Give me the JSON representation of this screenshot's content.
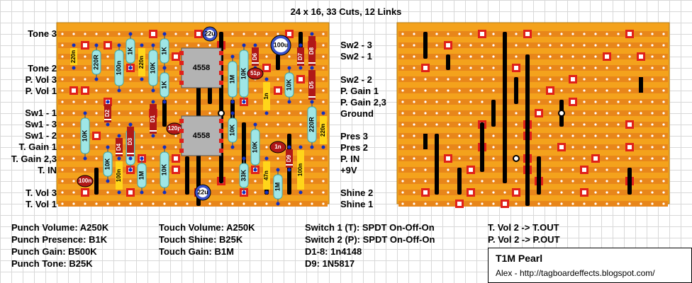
{
  "header": {
    "title": "24 x 16, 33 Cuts, 12 Links"
  },
  "labels_left": [
    "Tone 3",
    "Tone 2",
    "P. Vol 3",
    "P. Vol 1",
    "Sw1 - 1",
    "Sw1 - 3",
    "Sw1 - 2",
    "T. Gain 1",
    "T. Gain 2,3",
    "T. IN",
    "T. Vol 3",
    "T. Vol 1"
  ],
  "labels_right": [
    "Sw2 - 3",
    "Sw2 - 1",
    "Sw2 - 2",
    "P. Gain 1",
    "P. Gain 2,3",
    "Ground",
    "Pres 3",
    "Pres 2",
    "P. IN",
    "+9V",
    "Shine 2",
    "Shine 1"
  ],
  "components": {
    "resistors": [
      "220n",
      "220R",
      "100n",
      "1K",
      "220n",
      "10K",
      "1K",
      "1K",
      "10K",
      "1M",
      "10K",
      "10K",
      "1M",
      "1M",
      "10K",
      "10K",
      "10K",
      "1K",
      "10K",
      "1M",
      "1M",
      "10K",
      "10K",
      "33K",
      "47n",
      "1M",
      "220R",
      "220n"
    ],
    "caps": [
      "22u",
      "100u",
      "22u",
      "51p",
      "120p",
      "1n",
      "100n"
    ],
    "diodes": [
      "D1",
      "D2",
      "D3",
      "D4",
      "D5",
      "D6",
      "D7",
      "D8",
      "D9"
    ],
    "ics": [
      "4558",
      "4558"
    ],
    "film": [
      "1n",
      "100n"
    ]
  },
  "pots": [
    "Punch Volume: A250K",
    "Punch Presence: B1K",
    "Punch Gain: B500K",
    "Punch Tone: B25K"
  ],
  "pots2": [
    "Touch Volume: A250K",
    "Touch Shine: B25K",
    "Touch Gain: B1M"
  ],
  "switches": [
    "Switch 1 (T): SPDT On-Off-On",
    "Switch 2 (P): SPDT On-Off-On",
    "D1-8: 1n4148",
    "D9: 1N5817"
  ],
  "outputs": [
    "T. Vol 2 -> T.OUT",
    "P. Vol 2 -> P.OUT"
  ],
  "titlebox": {
    "name": "T1M Pearl",
    "credit": "Alex - http://tagboardeffects.blogspot.com/"
  },
  "colors": {
    "board": "#f4a21c",
    "strip": "#e8861a",
    "cut": "#e0201a",
    "link": "#000000",
    "component": "#9fe6e6",
    "cap_blue": "#3a52c8",
    "cap_red": "#b01818",
    "diode": "#b01818",
    "ic": "#b3b3b3"
  }
}
